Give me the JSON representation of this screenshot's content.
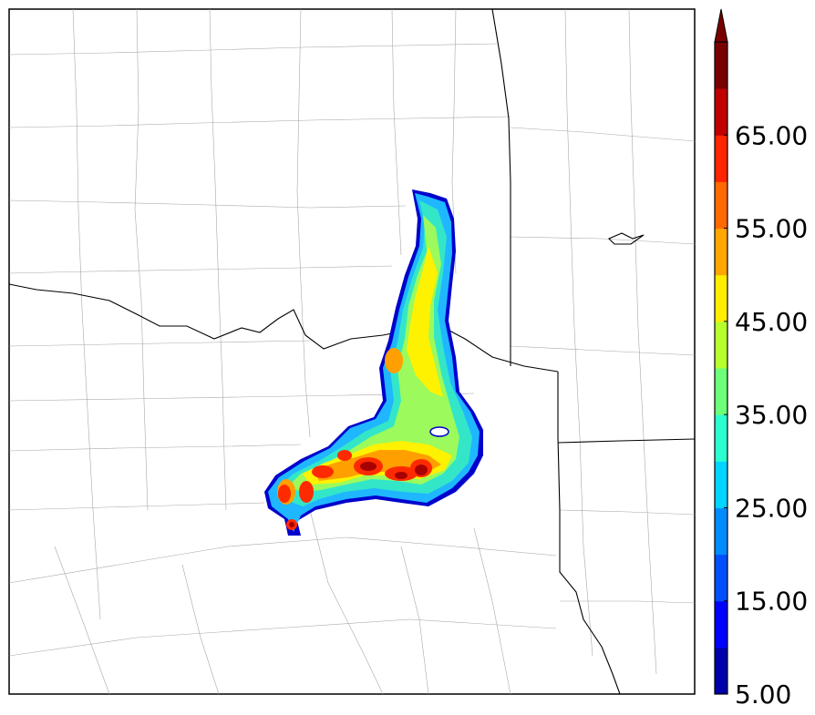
{
  "map": {
    "border_color": "#000000",
    "county_line_color": "#a0a0a0",
    "state_line_color": "#000000"
  },
  "field": {
    "shading": "filled contours",
    "cells": [
      {
        "c": "#0000cd",
        "v": 5
      },
      {
        "c": "#1fb7ff",
        "v": 27
      },
      {
        "c": "#33e6c8",
        "v": 33
      },
      {
        "c": "#9cfa5c",
        "v": 39
      },
      {
        "c": "#fff200",
        "v": 47
      },
      {
        "c": "#ff9f00",
        "v": 53
      },
      {
        "c": "#ff2a00",
        "v": 62
      },
      {
        "c": "#a80000",
        "v": 70
      }
    ]
  },
  "colorbar": {
    "bins": [
      5,
      10,
      15,
      20,
      25,
      30,
      35,
      40,
      45,
      50,
      55,
      60,
      65,
      70
    ],
    "colors": [
      "#0000aa",
      "#0000ff",
      "#0050ff",
      "#008cff",
      "#00d4ff",
      "#2bffd0",
      "#6eff7a",
      "#b8ff2e",
      "#ffee00",
      "#ffa600",
      "#ff6a00",
      "#ff2500",
      "#c00000",
      "#7a0000"
    ],
    "extend": "max",
    "tick_labels": [
      "5.00",
      "15.00",
      "25.00",
      "35.00",
      "45.00",
      "55.00",
      "65.00"
    ]
  }
}
